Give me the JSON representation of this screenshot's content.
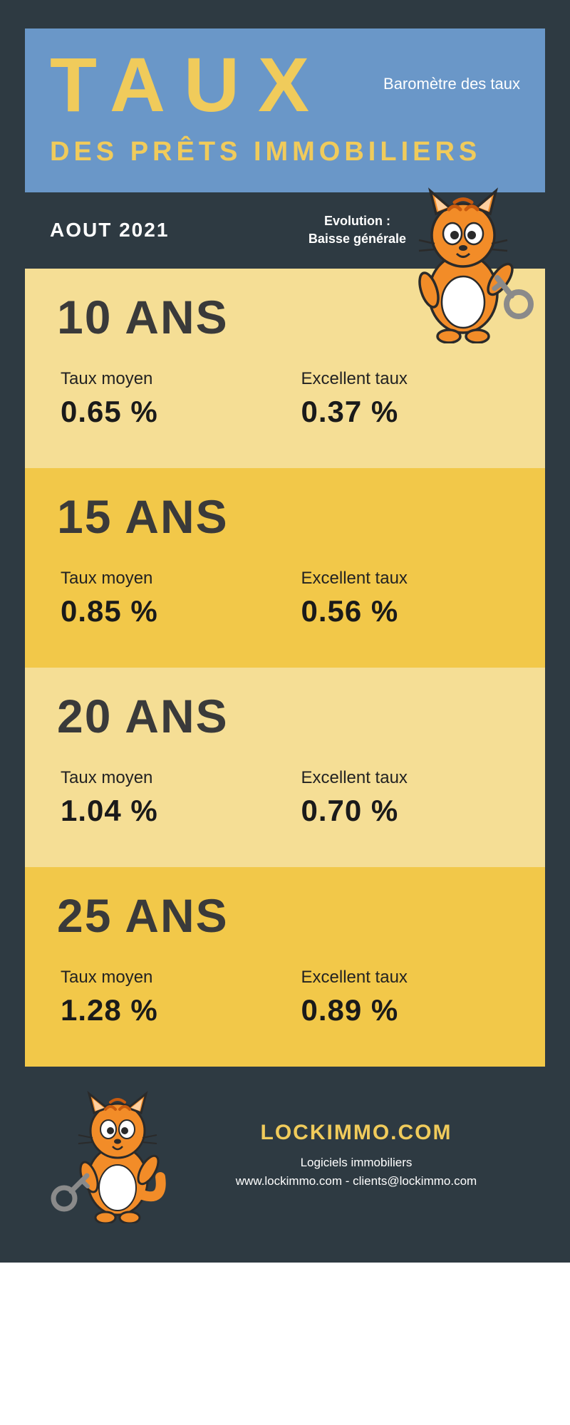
{
  "header": {
    "title": "TAUX",
    "barometer": "Baromètre des taux",
    "subtitle": "DES PRÊTS IMMOBILIERS"
  },
  "darkbar": {
    "month": "AOUT 2021",
    "evolution_label": "Evolution :",
    "evolution_value": "Baisse générale"
  },
  "labels": {
    "avg": "Taux moyen",
    "best": "Excellent taux"
  },
  "sections": [
    {
      "title": "10 ANS",
      "avg": "0.65 %",
      "best": "0.37 %",
      "bg": "#f5de95"
    },
    {
      "title": "15 ANS",
      "avg": "0.85 %",
      "best": "0.56 %",
      "bg": "#f2c849"
    },
    {
      "title": "20 ANS",
      "avg": "1.04 %",
      "best": "0.70 %",
      "bg": "#f5de95"
    },
    {
      "title": "25 ANS",
      "avg": "1.28 %",
      "best": "0.89 %",
      "bg": "#f2c849"
    }
  ],
  "footer": {
    "brand": "LOCKIMMO.COM",
    "line1": "Logiciels immobiliers",
    "line2": "www.lockimmo.com - clients@lockimmo.com"
  },
  "colors": {
    "header_bg": "#6a97c8",
    "dark_bg": "#2e3a42",
    "accent": "#f0cb5b",
    "text_dark": "#3a3a3a"
  },
  "mascot": {
    "name": "cat-with-key",
    "body_color": "#f28c28",
    "stripe_color": "#c85a0e",
    "belly_color": "#ffffff",
    "key_color": "#8a8a8a"
  }
}
